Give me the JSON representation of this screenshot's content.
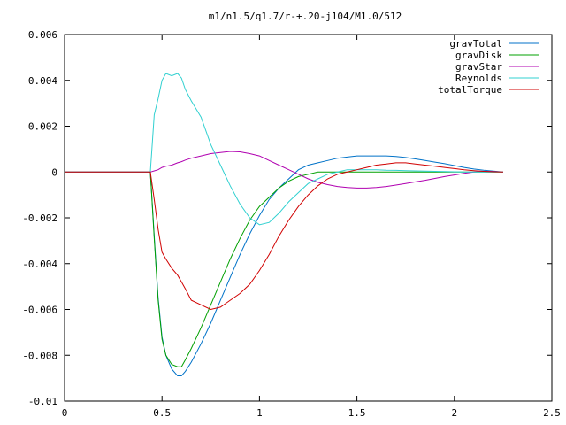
{
  "chart_data": {
    "type": "line",
    "title": "m1/n1.5/q1.7/r-+.20-j104/M1.0/512",
    "xlabel": "",
    "ylabel": "",
    "xlim": [
      0,
      2.5
    ],
    "ylim": [
      -0.01,
      0.006
    ],
    "x_ticks": [
      0,
      0.5,
      1,
      1.5,
      2,
      2.5
    ],
    "y_ticks": [
      -0.01,
      -0.008,
      -0.006,
      -0.004,
      -0.002,
      0,
      0.002,
      0.004,
      0.006
    ],
    "x_tick_labels": [
      "0",
      "0.5",
      "1",
      "1.5",
      "2",
      "2.5"
    ],
    "y_tick_labels": [
      "-0.01",
      "-0.008",
      "-0.006",
      "-0.004",
      "-0.002",
      "0",
      "0.002",
      "0.004",
      "0.006"
    ],
    "grid": false,
    "legend_position": "top-right",
    "x": [
      0,
      0.1,
      0.2,
      0.3,
      0.4,
      0.44,
      0.46,
      0.48,
      0.5,
      0.52,
      0.55,
      0.58,
      0.6,
      0.62,
      0.65,
      0.7,
      0.75,
      0.8,
      0.85,
      0.9,
      0.95,
      1.0,
      1.05,
      1.1,
      1.15,
      1.2,
      1.25,
      1.3,
      1.35,
      1.4,
      1.45,
      1.5,
      1.55,
      1.6,
      1.65,
      1.7,
      1.75,
      1.8,
      1.85,
      1.9,
      1.95,
      2.0,
      2.05,
      2.1,
      2.15,
      2.2,
      2.25
    ],
    "series": [
      {
        "name": "gravTotal",
        "color": "#0072c8",
        "values": [
          0,
          0,
          0,
          0,
          0,
          0,
          -0.0028,
          -0.0055,
          -0.0072,
          -0.008,
          -0.0086,
          -0.0089,
          -0.0089,
          -0.0087,
          -0.0083,
          -0.0075,
          -0.0066,
          -0.0056,
          -0.0046,
          -0.0036,
          -0.0027,
          -0.0019,
          -0.0012,
          -0.0007,
          -0.0003,
          0.0001,
          0.0003,
          0.0004,
          0.0005,
          0.0006,
          0.00065,
          0.0007,
          0.0007,
          0.0007,
          0.0007,
          0.00068,
          0.00063,
          0.00057,
          0.0005,
          0.00043,
          0.00036,
          0.00028,
          0.0002,
          0.00013,
          8e-05,
          4e-05,
          0
        ]
      },
      {
        "name": "gravDisk",
        "color": "#00a000",
        "values": [
          0,
          0,
          0,
          0,
          0,
          0,
          -0.0029,
          -0.0056,
          -0.0073,
          -0.008,
          -0.0084,
          -0.0085,
          -0.0085,
          -0.0082,
          -0.0077,
          -0.0068,
          -0.0058,
          -0.0048,
          -0.0038,
          -0.0029,
          -0.0021,
          -0.0015,
          -0.0011,
          -0.0007,
          -0.0004,
          -0.0002,
          -0.0001,
          0,
          0,
          0,
          0,
          0,
          0,
          0,
          0,
          0,
          0,
          0,
          0,
          0,
          0,
          0,
          0,
          0,
          0,
          0,
          0
        ]
      },
      {
        "name": "gravStar",
        "color": "#b000b0",
        "values": [
          0,
          0,
          0,
          0,
          0,
          0,
          5e-05,
          0.0001,
          0.0002,
          0.00025,
          0.0003,
          0.0004,
          0.00045,
          0.00052,
          0.0006,
          0.0007,
          0.0008,
          0.00085,
          0.0009,
          0.00088,
          0.0008,
          0.0007,
          0.0005,
          0.0003,
          0.0001,
          -0.0001,
          -0.0003,
          -0.00045,
          -0.00055,
          -0.00063,
          -0.00068,
          -0.0007,
          -0.0007,
          -0.00068,
          -0.00063,
          -0.00057,
          -0.0005,
          -0.00043,
          -0.00036,
          -0.00028,
          -0.0002,
          -0.00013,
          -6e-05,
          0,
          3e-05,
          2e-05,
          0
        ]
      },
      {
        "name": "Reynolds",
        "color": "#30d0d0",
        "values": [
          0,
          0,
          0,
          0,
          0,
          0,
          0.0025,
          0.0032,
          0.004,
          0.0043,
          0.0042,
          0.0043,
          0.0041,
          0.0036,
          0.0031,
          0.0024,
          0.0012,
          0.0003,
          -0.0006,
          -0.0014,
          -0.002,
          -0.0023,
          -0.0022,
          -0.0018,
          -0.0013,
          -0.0009,
          -0.0005,
          -0.0003,
          -0.0001,
          0,
          0.0001,
          0.0001,
          0.0001,
          0.0001,
          8e-05,
          7e-05,
          6e-05,
          5e-05,
          4e-05,
          3e-05,
          2e-05,
          1e-05,
          0,
          0,
          0,
          0,
          0
        ]
      },
      {
        "name": "totalTorque",
        "color": "#d00000",
        "values": [
          0,
          0,
          0,
          0,
          0,
          0,
          -0.0012,
          -0.0025,
          -0.0035,
          -0.0038,
          -0.0042,
          -0.0045,
          -0.0048,
          -0.0051,
          -0.0056,
          -0.0058,
          -0.006,
          -0.0059,
          -0.0056,
          -0.0053,
          -0.0049,
          -0.0043,
          -0.0036,
          -0.0028,
          -0.0021,
          -0.0015,
          -0.001,
          -0.0006,
          -0.0003,
          -0.0001,
          0,
          0.0001,
          0.0002,
          0.0003,
          0.00035,
          0.0004,
          0.0004,
          0.00035,
          0.0003,
          0.00025,
          0.0002,
          0.00015,
          0.0001,
          6e-05,
          3e-05,
          1e-05,
          0
        ]
      }
    ]
  }
}
